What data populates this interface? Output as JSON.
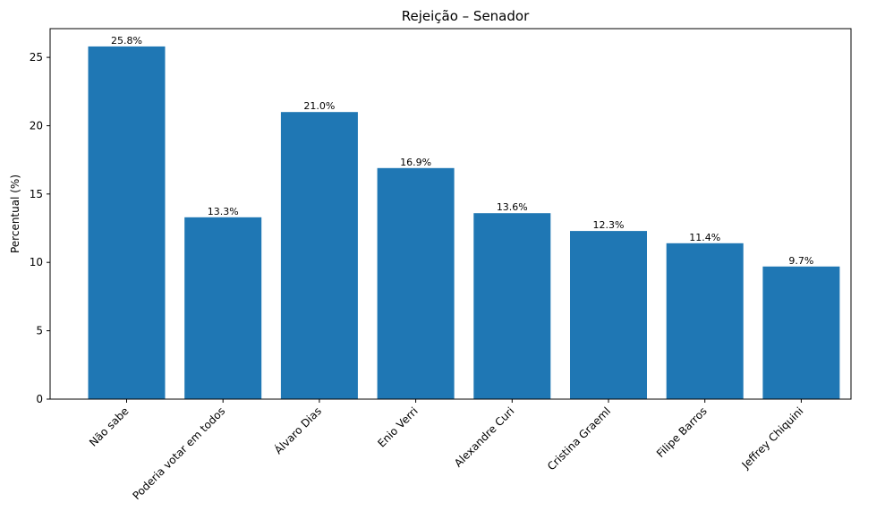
{
  "chart_data": {
    "type": "bar",
    "title": "Rejeição – Senador",
    "xlabel": "",
    "ylabel": "Percentual (%)",
    "ylim": [
      0,
      27.1
    ],
    "yticks": [
      0,
      5,
      10,
      15,
      20,
      25
    ],
    "categories": [
      "Não sabe",
      "Poderia votar em todos",
      "Álvaro Dias",
      "Enio Verri",
      "Alexandre Curi",
      "Cristina Graeml",
      "Filipe Barros",
      "Jeffrey Chiquini"
    ],
    "values": [
      25.8,
      13.3,
      21.0,
      16.9,
      13.6,
      12.3,
      11.4,
      9.7
    ],
    "data_labels": [
      "25.8%",
      "13.3%",
      "21.0%",
      "16.9%",
      "13.6%",
      "12.3%",
      "11.4%",
      "9.7%"
    ],
    "bar_color": "#1f77b4",
    "grid": false,
    "legend": "none"
  }
}
